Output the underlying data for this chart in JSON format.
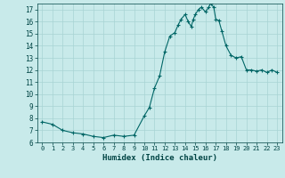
{
  "x": [
    0,
    1,
    2,
    3,
    4,
    5,
    6,
    7,
    8,
    9,
    10,
    10.5,
    11,
    11.5,
    12,
    12.5,
    13,
    13.3,
    13.6,
    14,
    14.3,
    14.6,
    14.8,
    15,
    15.3,
    15.6,
    16,
    16.3,
    16.5,
    16.8,
    17,
    17.3,
    17.6,
    18,
    18.5,
    19,
    19.5,
    20,
    20.5,
    21,
    21.5,
    22,
    22.5,
    23
  ],
  "y": [
    7.7,
    7.5,
    7.0,
    6.8,
    6.7,
    6.5,
    6.4,
    6.6,
    6.5,
    6.6,
    8.2,
    8.9,
    10.5,
    11.5,
    13.5,
    14.8,
    15.1,
    15.7,
    16.2,
    16.6,
    16.0,
    15.6,
    16.2,
    16.6,
    17.0,
    17.2,
    16.8,
    17.2,
    17.5,
    17.2,
    16.2,
    16.1,
    15.2,
    14.0,
    13.2,
    13.0,
    13.1,
    12.0,
    12.0,
    11.9,
    12.0,
    11.8,
    12.0,
    11.8
  ],
  "xlim": [
    -0.5,
    23.5
  ],
  "ylim": [
    6,
    17.5
  ],
  "yticks": [
    6,
    7,
    8,
    9,
    10,
    11,
    12,
    13,
    14,
    15,
    16,
    17
  ],
  "xticks": [
    0,
    1,
    2,
    3,
    4,
    5,
    6,
    7,
    8,
    9,
    10,
    11,
    12,
    13,
    14,
    15,
    16,
    17,
    18,
    19,
    20,
    21,
    22,
    23
  ],
  "xlabel": "Humidex (Indice chaleur)",
  "line_color": "#006666",
  "marker": "+",
  "bg_color": "#c8eaea",
  "grid_color": "#a8d4d4",
  "tick_color": "#004444",
  "label_color": "#004444"
}
